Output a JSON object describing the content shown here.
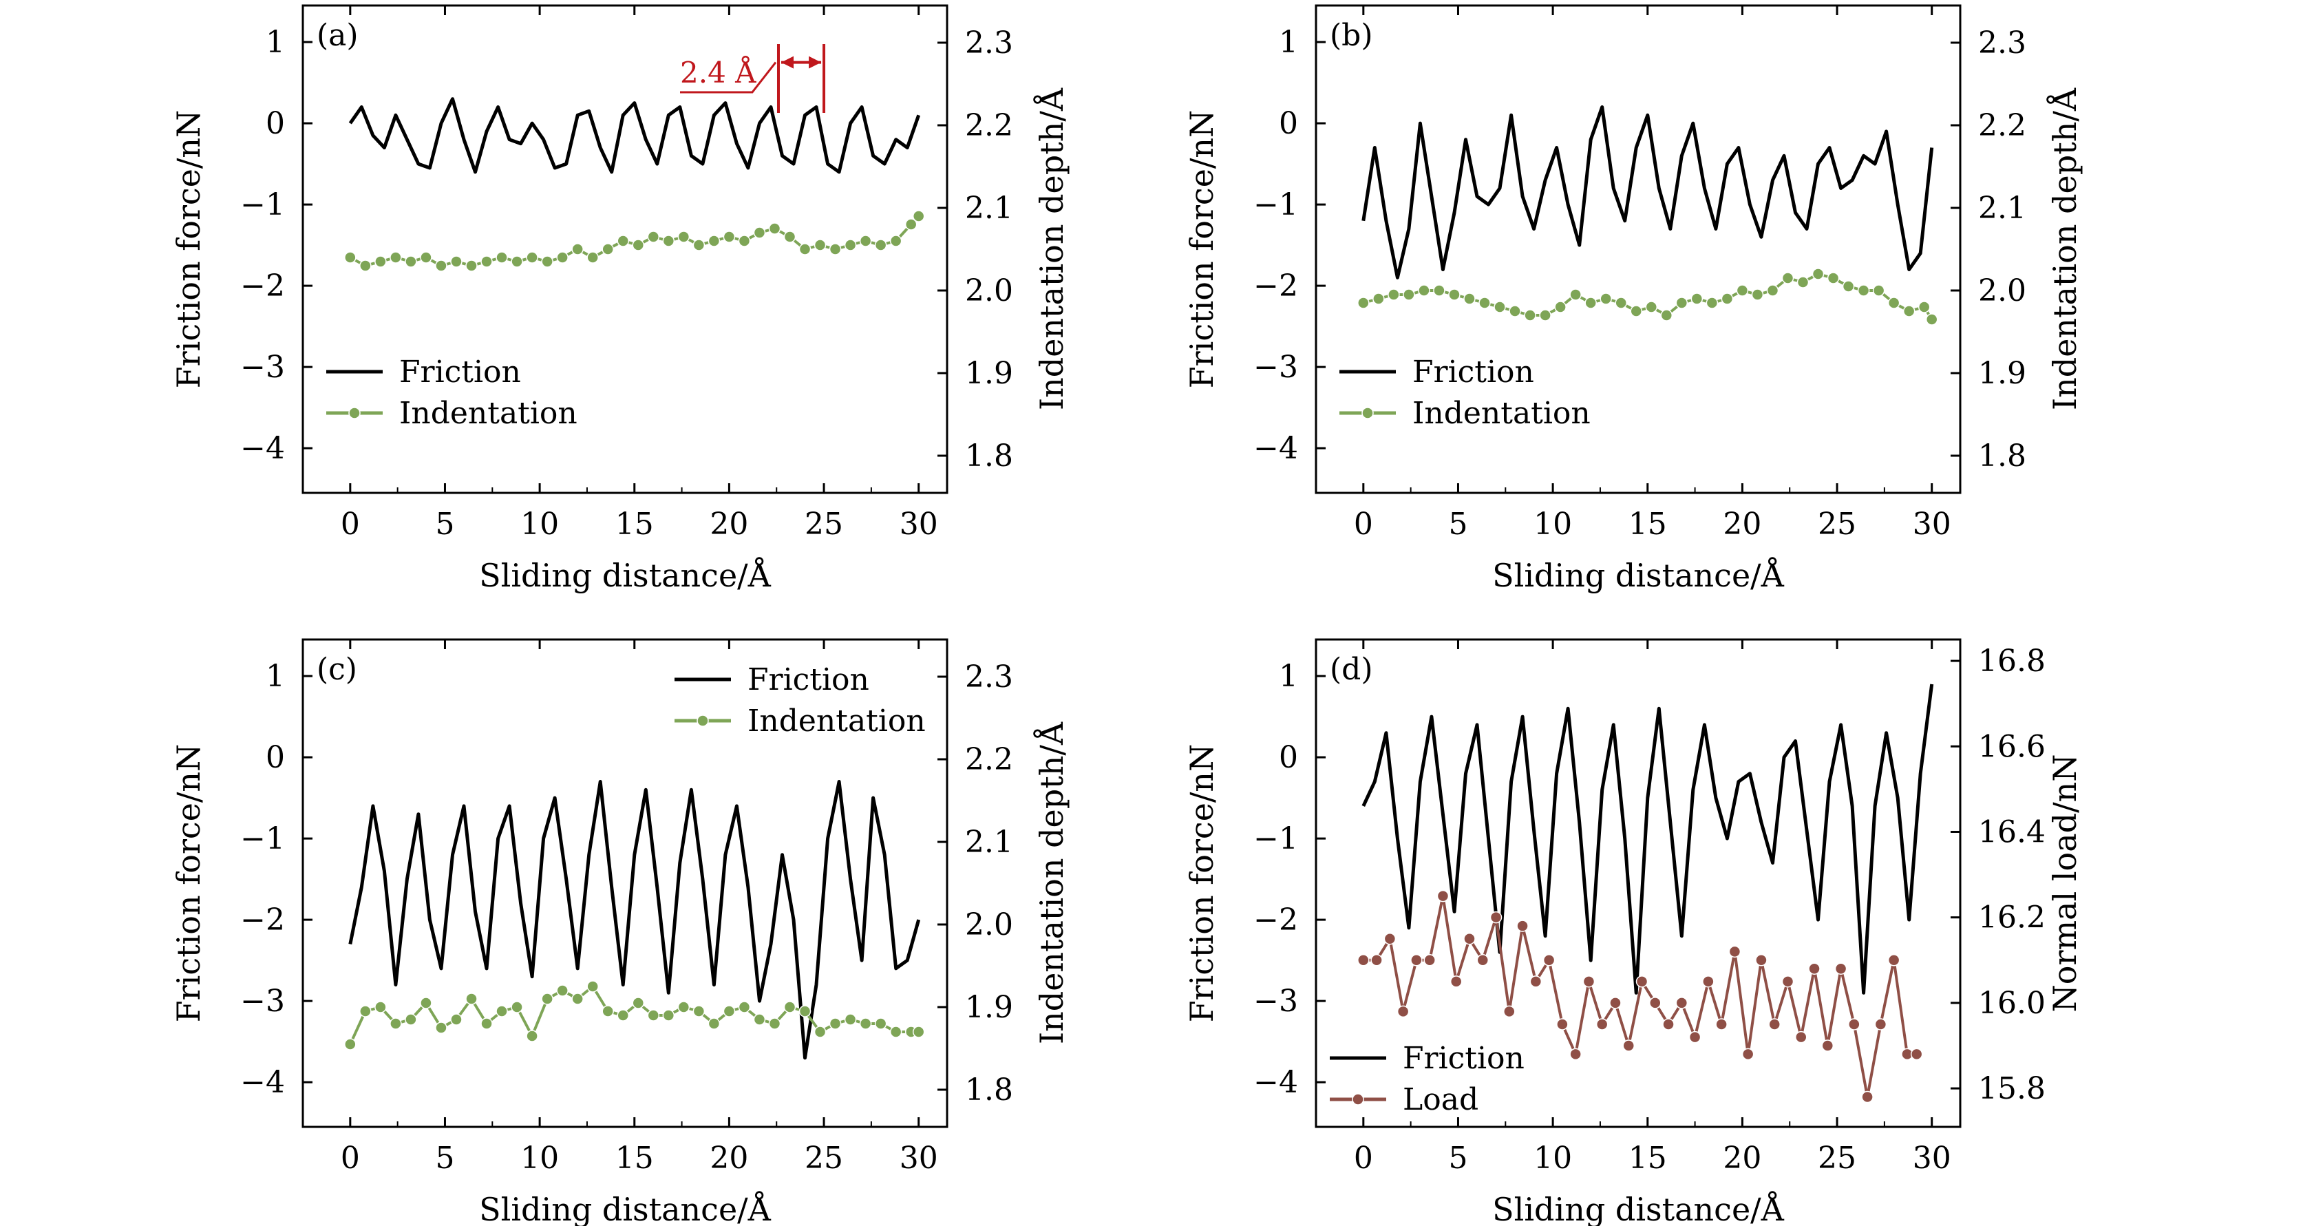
{
  "chart_data": [
    {
      "type": "line",
      "panel_label": "(a)",
      "xlabel": "Sliding distance/Å",
      "ylabel": "Friction force/nN",
      "y2label": "Indentation depth/Å",
      "xlim": [
        -2.5,
        31.5
      ],
      "ylim": [
        -4.55,
        1.45
      ],
      "y2lim": [
        1.755,
        2.345
      ],
      "xticks": [
        0,
        5,
        10,
        15,
        20,
        25,
        30
      ],
      "xtick_labels": [
        "0",
        "5",
        "10",
        "15",
        "20",
        "25",
        "30"
      ],
      "yticks": [
        1,
        0,
        -1,
        -2,
        -3,
        -4
      ],
      "ytick_labels": [
        "1",
        "0",
        "−1",
        "−2",
        "−3",
        "−4"
      ],
      "y2ticks": [
        2.3,
        2.2,
        2.1,
        2.0,
        1.9,
        1.8
      ],
      "y2tick_labels": [
        "2.3",
        "2.2",
        "2.1",
        "2.0",
        "1.9",
        "1.8"
      ],
      "legend_position": "bottom-left",
      "annotation": {
        "text": "2.4 Å",
        "x_start": 22.6,
        "x_end": 25.0,
        "y": 0.75
      },
      "series": [
        {
          "name": "Friction",
          "axis": "left",
          "color": "#000000",
          "markers": false,
          "x": [
            0,
            0.6,
            1.2,
            1.8,
            2.4,
            3.0,
            3.6,
            4.2,
            4.8,
            5.4,
            6.0,
            6.6,
            7.2,
            7.8,
            8.4,
            9.0,
            9.6,
            10.2,
            10.8,
            11.4,
            12.0,
            12.6,
            13.2,
            13.8,
            14.4,
            15.0,
            15.6,
            16.2,
            16.8,
            17.4,
            18.0,
            18.6,
            19.2,
            19.8,
            20.4,
            21.0,
            21.6,
            22.2,
            22.8,
            23.4,
            24.0,
            24.6,
            25.2,
            25.8,
            26.4,
            27.0,
            27.6,
            28.2,
            28.8,
            29.4,
            30.0
          ],
          "y": [
            0.0,
            0.2,
            -0.15,
            -0.3,
            0.1,
            -0.2,
            -0.5,
            -0.55,
            0.0,
            0.3,
            -0.2,
            -0.6,
            -0.1,
            0.2,
            -0.2,
            -0.25,
            0.0,
            -0.2,
            -0.55,
            -0.5,
            0.1,
            0.15,
            -0.3,
            -0.6,
            0.1,
            0.25,
            -0.2,
            -0.5,
            0.1,
            0.2,
            -0.4,
            -0.5,
            0.1,
            0.25,
            -0.25,
            -0.55,
            0.0,
            0.2,
            -0.4,
            -0.5,
            0.1,
            0.2,
            -0.5,
            -0.6,
            0.0,
            0.2,
            -0.4,
            -0.5,
            -0.2,
            -0.3,
            0.1
          ]
        },
        {
          "name": "Indentation",
          "axis": "right",
          "color": "#7ea556",
          "markers": true,
          "x": [
            0,
            0.8,
            1.6,
            2.4,
            3.2,
            4.0,
            4.8,
            5.6,
            6.4,
            7.2,
            8.0,
            8.8,
            9.6,
            10.4,
            11.2,
            12.0,
            12.8,
            13.6,
            14.4,
            15.2,
            16.0,
            16.8,
            17.6,
            18.4,
            19.2,
            20.0,
            20.8,
            21.6,
            22.4,
            23.2,
            24.0,
            24.8,
            25.6,
            26.4,
            27.2,
            28.0,
            28.8,
            29.6,
            30.0
          ],
          "y": [
            2.04,
            2.03,
            2.035,
            2.04,
            2.035,
            2.04,
            2.03,
            2.035,
            2.03,
            2.035,
            2.04,
            2.035,
            2.04,
            2.035,
            2.04,
            2.05,
            2.04,
            2.05,
            2.06,
            2.055,
            2.065,
            2.06,
            2.065,
            2.055,
            2.06,
            2.065,
            2.06,
            2.07,
            2.075,
            2.065,
            2.05,
            2.055,
            2.05,
            2.055,
            2.06,
            2.055,
            2.06,
            2.08,
            2.09
          ]
        }
      ]
    },
    {
      "type": "line",
      "panel_label": "(b)",
      "xlabel": "Sliding distance/Å",
      "ylabel": "Friction force/nN",
      "y2label": "Indentation depth/Å",
      "xlim": [
        -2.5,
        31.5
      ],
      "ylim": [
        -4.55,
        1.45
      ],
      "y2lim": [
        1.755,
        2.345
      ],
      "xticks": [
        0,
        5,
        10,
        15,
        20,
        25,
        30
      ],
      "xtick_labels": [
        "0",
        "5",
        "10",
        "15",
        "20",
        "25",
        "30"
      ],
      "yticks": [
        1,
        0,
        -1,
        -2,
        -3,
        -4
      ],
      "ytick_labels": [
        "1",
        "0",
        "−1",
        "−2",
        "−3",
        "−4"
      ],
      "y2ticks": [
        2.3,
        2.2,
        2.1,
        2.0,
        1.9,
        1.8
      ],
      "y2tick_labels": [
        "2.3",
        "2.2",
        "2.1",
        "2.0",
        "1.9",
        "1.8"
      ],
      "legend_position": "bottom-left",
      "series": [
        {
          "name": "Friction",
          "axis": "left",
          "color": "#000000",
          "markers": false,
          "x": [
            0,
            0.6,
            1.2,
            1.8,
            2.4,
            3.0,
            3.6,
            4.2,
            4.8,
            5.4,
            6.0,
            6.6,
            7.2,
            7.8,
            8.4,
            9.0,
            9.6,
            10.2,
            10.8,
            11.4,
            12.0,
            12.6,
            13.2,
            13.8,
            14.4,
            15.0,
            15.6,
            16.2,
            16.8,
            17.4,
            18.0,
            18.6,
            19.2,
            19.8,
            20.4,
            21.0,
            21.6,
            22.2,
            22.8,
            23.4,
            24.0,
            24.6,
            25.2,
            25.8,
            26.4,
            27.0,
            27.6,
            28.2,
            28.8,
            29.4,
            30.0
          ],
          "y": [
            -1.2,
            -0.3,
            -1.2,
            -1.9,
            -1.3,
            0.0,
            -0.9,
            -1.8,
            -1.1,
            -0.2,
            -0.9,
            -1.0,
            -0.8,
            0.1,
            -0.9,
            -1.3,
            -0.7,
            -0.3,
            -1.0,
            -1.5,
            -0.2,
            0.2,
            -0.8,
            -1.2,
            -0.3,
            0.1,
            -0.8,
            -1.3,
            -0.4,
            0.0,
            -0.8,
            -1.3,
            -0.5,
            -0.3,
            -1.0,
            -1.4,
            -0.7,
            -0.4,
            -1.1,
            -1.3,
            -0.5,
            -0.3,
            -0.8,
            -0.7,
            -0.4,
            -0.5,
            -0.1,
            -1.0,
            -1.8,
            -1.6,
            -0.3
          ]
        },
        {
          "name": "Indentation",
          "axis": "right",
          "color": "#7ea556",
          "markers": true,
          "x": [
            0,
            0.8,
            1.6,
            2.4,
            3.2,
            4.0,
            4.8,
            5.6,
            6.4,
            7.2,
            8.0,
            8.8,
            9.6,
            10.4,
            11.2,
            12.0,
            12.8,
            13.6,
            14.4,
            15.2,
            16.0,
            16.8,
            17.6,
            18.4,
            19.2,
            20.0,
            20.8,
            21.6,
            22.4,
            23.2,
            24.0,
            24.8,
            25.6,
            26.4,
            27.2,
            28.0,
            28.8,
            29.6,
            30.0
          ],
          "y": [
            1.985,
            1.99,
            1.995,
            1.995,
            2.0,
            2.0,
            1.995,
            1.99,
            1.985,
            1.98,
            1.975,
            1.97,
            1.97,
            1.98,
            1.995,
            1.985,
            1.99,
            1.985,
            1.975,
            1.98,
            1.97,
            1.985,
            1.99,
            1.985,
            1.99,
            2.0,
            1.995,
            2.0,
            2.015,
            2.01,
            2.02,
            2.015,
            2.005,
            2.0,
            2.0,
            1.985,
            1.975,
            1.98,
            1.965
          ]
        }
      ]
    },
    {
      "type": "line",
      "panel_label": "(c)",
      "xlabel": "Sliding distance/Å",
      "ylabel": "Friction force/nN",
      "y2label": "Indentation depth/Å",
      "xlim": [
        -2.5,
        31.5
      ],
      "ylim": [
        -4.55,
        1.45
      ],
      "y2lim": [
        1.755,
        2.345
      ],
      "xticks": [
        0,
        5,
        10,
        15,
        20,
        25,
        30
      ],
      "xtick_labels": [
        "0",
        "5",
        "10",
        "15",
        "20",
        "25",
        "30"
      ],
      "yticks": [
        1,
        0,
        -1,
        -2,
        -3,
        -4
      ],
      "ytick_labels": [
        "1",
        "0",
        "−1",
        "−2",
        "−3",
        "−4"
      ],
      "y2ticks": [
        2.3,
        2.2,
        2.1,
        2.0,
        1.9,
        1.8
      ],
      "y2tick_labels": [
        "2.3",
        "2.2",
        "2.1",
        "2.0",
        "1.9",
        "1.8"
      ],
      "legend_position": "top-right",
      "series": [
        {
          "name": "Friction",
          "axis": "left",
          "color": "#000000",
          "markers": false,
          "x": [
            0,
            0.6,
            1.2,
            1.8,
            2.4,
            3.0,
            3.6,
            4.2,
            4.8,
            5.4,
            6.0,
            6.6,
            7.2,
            7.8,
            8.4,
            9.0,
            9.6,
            10.2,
            10.8,
            11.4,
            12.0,
            12.6,
            13.2,
            13.8,
            14.4,
            15.0,
            15.6,
            16.2,
            16.8,
            17.4,
            18.0,
            18.6,
            19.2,
            19.8,
            20.4,
            21.0,
            21.6,
            22.2,
            22.8,
            23.4,
            24.0,
            24.6,
            25.2,
            25.8,
            26.4,
            27.0,
            27.6,
            28.2,
            28.8,
            29.4,
            30.0
          ],
          "y": [
            -2.3,
            -1.6,
            -0.6,
            -1.4,
            -2.8,
            -1.5,
            -0.7,
            -2.0,
            -2.6,
            -1.2,
            -0.6,
            -1.9,
            -2.6,
            -1.0,
            -0.6,
            -1.8,
            -2.7,
            -1.0,
            -0.5,
            -1.5,
            -2.6,
            -1.2,
            -0.3,
            -1.6,
            -2.8,
            -1.2,
            -0.4,
            -1.6,
            -2.9,
            -1.3,
            -0.4,
            -1.5,
            -2.8,
            -1.2,
            -0.6,
            -1.6,
            -3.0,
            -2.3,
            -1.2,
            -2.0,
            -3.7,
            -2.8,
            -1.0,
            -0.3,
            -1.5,
            -2.5,
            -0.5,
            -1.2,
            -2.6,
            -2.5,
            -2.0
          ]
        },
        {
          "name": "Indentation",
          "axis": "right",
          "color": "#7ea556",
          "markers": true,
          "x": [
            0,
            0.8,
            1.6,
            2.4,
            3.2,
            4.0,
            4.8,
            5.6,
            6.4,
            7.2,
            8.0,
            8.8,
            9.6,
            10.4,
            11.2,
            12.0,
            12.8,
            13.6,
            14.4,
            15.2,
            16.0,
            16.8,
            17.6,
            18.4,
            19.2,
            20.0,
            20.8,
            21.6,
            22.4,
            23.2,
            24.0,
            24.8,
            25.6,
            26.4,
            27.2,
            28.0,
            28.8,
            29.6,
            30.0
          ],
          "y": [
            1.855,
            1.895,
            1.9,
            1.88,
            1.885,
            1.905,
            1.875,
            1.885,
            1.91,
            1.88,
            1.895,
            1.9,
            1.865,
            1.91,
            1.92,
            1.91,
            1.925,
            1.895,
            1.89,
            1.905,
            1.89,
            1.89,
            1.9,
            1.895,
            1.88,
            1.895,
            1.9,
            1.885,
            1.88,
            1.9,
            1.895,
            1.87,
            1.88,
            1.885,
            1.88,
            1.88,
            1.87,
            1.87,
            1.87
          ]
        }
      ]
    },
    {
      "type": "line",
      "panel_label": "(d)",
      "xlabel": "Sliding distance/Å",
      "ylabel": "Friction force/nN",
      "y2label": "Normal load/nN",
      "xlim": [
        -2.5,
        31.5
      ],
      "ylim": [
        -4.55,
        1.45
      ],
      "y2lim": [
        15.71,
        16.85
      ],
      "xticks": [
        0,
        5,
        10,
        15,
        20,
        25,
        30
      ],
      "xtick_labels": [
        "0",
        "5",
        "10",
        "15",
        "20",
        "25",
        "30"
      ],
      "yticks": [
        1,
        0,
        -1,
        -2,
        -3,
        -4
      ],
      "ytick_labels": [
        "1",
        "0",
        "−1",
        "−2",
        "−3",
        "−4"
      ],
      "y2ticks": [
        16.8,
        16.6,
        16.4,
        16.2,
        16.0,
        15.8
      ],
      "y2tick_labels": [
        "16.8",
        "16.6",
        "16.4",
        "16.2",
        "16.0",
        "15.8"
      ],
      "legend_position": "bottom-left",
      "series": [
        {
          "name": "Friction",
          "axis": "left",
          "color": "#000000",
          "markers": false,
          "x": [
            0,
            0.6,
            1.2,
            1.8,
            2.4,
            3.0,
            3.6,
            4.2,
            4.8,
            5.4,
            6.0,
            6.6,
            7.2,
            7.8,
            8.4,
            9.0,
            9.6,
            10.2,
            10.8,
            11.4,
            12.0,
            12.6,
            13.2,
            13.8,
            14.4,
            15.0,
            15.6,
            16.2,
            16.8,
            17.4,
            18.0,
            18.6,
            19.2,
            19.8,
            20.4,
            21.0,
            21.6,
            22.2,
            22.8,
            23.4,
            24.0,
            24.6,
            25.2,
            25.8,
            26.4,
            27.0,
            27.6,
            28.2,
            28.8,
            29.4,
            30.0
          ],
          "y": [
            -0.6,
            -0.3,
            0.3,
            -1.0,
            -2.1,
            -0.3,
            0.5,
            -0.7,
            -1.9,
            -0.2,
            0.4,
            -1.0,
            -2.4,
            -0.3,
            0.5,
            -0.9,
            -2.2,
            -0.2,
            0.6,
            -0.8,
            -2.5,
            -0.4,
            0.4,
            -1.0,
            -2.9,
            -0.5,
            0.6,
            -0.8,
            -2.2,
            -0.4,
            0.4,
            -0.5,
            -1.0,
            -0.3,
            -0.2,
            -0.8,
            -1.3,
            0.0,
            0.2,
            -0.9,
            -2.0,
            -0.3,
            0.4,
            -0.6,
            -2.9,
            -0.6,
            0.3,
            -0.5,
            -2.0,
            -0.2,
            0.9
          ]
        },
        {
          "name": "Load",
          "axis": "right",
          "color": "#8f4f46",
          "markers": true,
          "x": [
            0,
            0.7,
            1.4,
            2.1,
            2.8,
            3.5,
            4.2,
            4.9,
            5.6,
            6.3,
            7.0,
            7.7,
            8.4,
            9.1,
            9.8,
            10.5,
            11.2,
            11.9,
            12.6,
            13.3,
            14.0,
            14.7,
            15.4,
            16.1,
            16.8,
            17.5,
            18.2,
            18.9,
            19.6,
            20.3,
            21.0,
            21.7,
            22.4,
            23.1,
            23.8,
            24.5,
            25.2,
            25.9,
            26.6,
            27.3,
            28.0,
            28.7,
            29.2
          ],
          "y": [
            16.1,
            16.1,
            16.15,
            15.98,
            16.1,
            16.1,
            16.25,
            16.05,
            16.15,
            16.1,
            16.2,
            15.98,
            16.18,
            16.05,
            16.1,
            15.95,
            15.88,
            16.05,
            15.95,
            16.0,
            15.9,
            16.05,
            16.0,
            15.95,
            16.0,
            15.92,
            16.05,
            15.95,
            16.12,
            15.88,
            16.1,
            15.95,
            16.05,
            15.92,
            16.08,
            15.9,
            16.08,
            15.95,
            15.78,
            15.95,
            16.1,
            15.88,
            15.88
          ]
        }
      ]
    }
  ]
}
